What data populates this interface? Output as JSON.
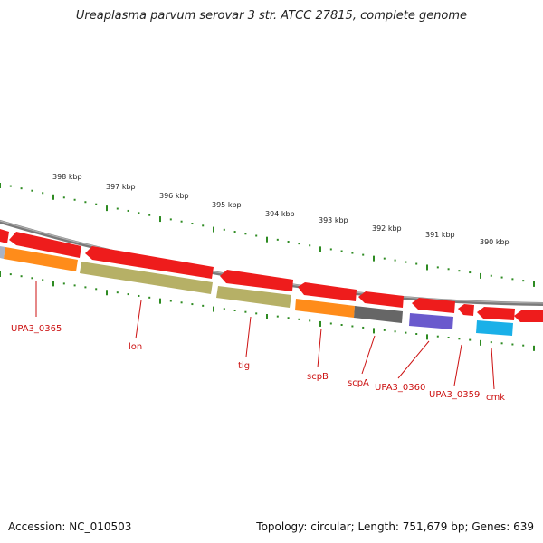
{
  "title": "Ureaplasma parvum serovar 3 str. ATCC 27815, complete genome",
  "footer": {
    "accession": "Accession: NC_010503",
    "summary": "Topology: circular; Length: 751,679 bp; Genes: 639"
  },
  "colors": {
    "backbone": "#888888",
    "tick": "#2e8b22",
    "label": "#cc1111",
    "gene_red": "#ee1c1c",
    "gene_orange": "#ff8c1a",
    "gene_olive": "#b6b066",
    "gene_gray": "#666666",
    "gene_purple": "#6a5acd",
    "gene_cyan": "#1ab0e8"
  },
  "kbp_ticks": [
    "398 kbp",
    "397 kbp",
    "396 kbp",
    "395 kbp",
    "394 kbp",
    "393 kbp",
    "392 kbp",
    "391 kbp",
    "390 kbp"
  ],
  "gene_labels": [
    "UPA3_0365",
    "lon",
    "tig",
    "scpB",
    "scpA",
    "UPA3_0360",
    "UPA3_0359",
    "cmk"
  ]
}
